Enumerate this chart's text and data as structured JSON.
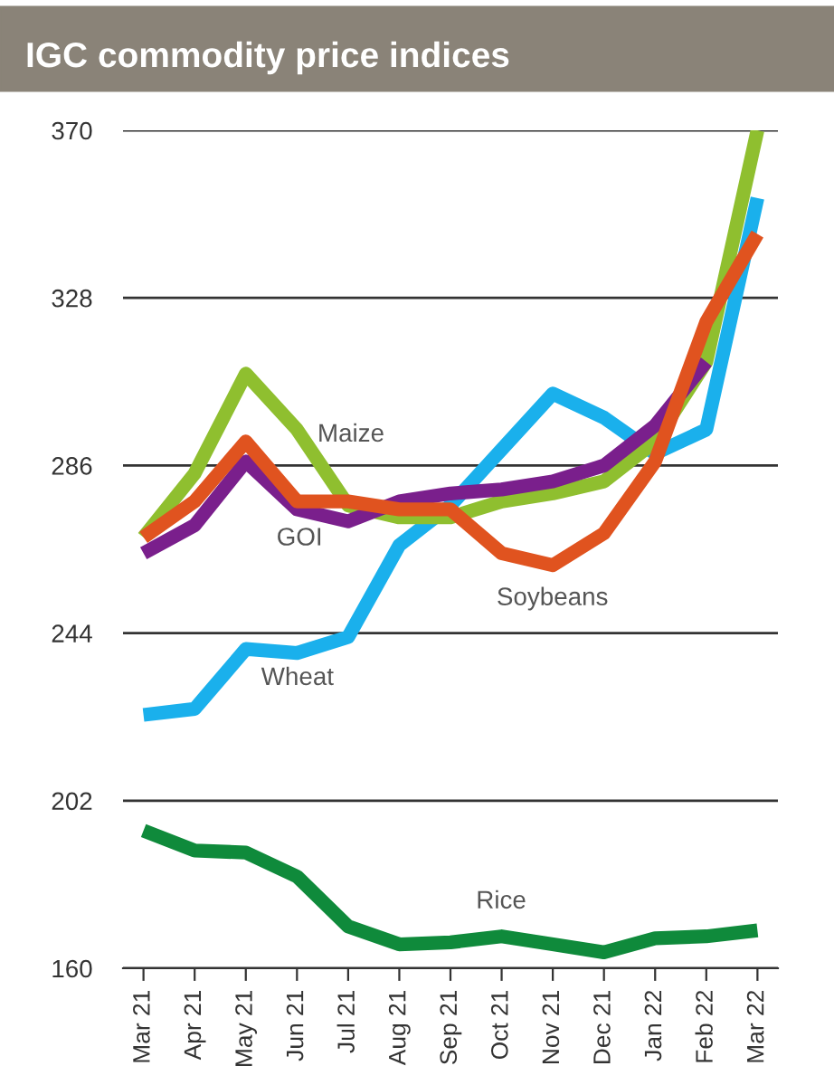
{
  "chart_data": {
    "type": "line",
    "title": "IGC commodity price indices",
    "categories": [
      "Mar 21",
      "Apr 21",
      "May 21",
      "Jun 21",
      "Jul 21",
      "Aug 21",
      "Sep 21",
      "Oct 21",
      "Nov 21",
      "Dec 21",
      "Jan 22",
      "Feb 22",
      "Mar 22"
    ],
    "series": [
      {
        "name": "Wheat",
        "color": "#1ab0ec",
        "values": [
          223.5,
          225,
          240,
          239,
          243,
          266,
          276,
          290,
          304,
          298,
          289,
          295,
          353
        ]
      },
      {
        "name": "Maize",
        "color": "#8fbf2f",
        "values": [
          268,
          284,
          309,
          295,
          276,
          273,
          273,
          277,
          279,
          282,
          292,
          312,
          370
        ]
      },
      {
        "name": "GOI",
        "color": "#7a1f8c",
        "values": [
          264,
          271,
          287,
          275,
          272,
          277,
          279,
          280,
          282,
          286,
          296,
          312,
          null
        ]
      },
      {
        "name": "Soybeans",
        "color": "#e0531f",
        "values": [
          268,
          277,
          292,
          277,
          277,
          275,
          275,
          264,
          261,
          269,
          287,
          322,
          344
        ]
      },
      {
        "name": "Rice",
        "color": "#0f8a3b",
        "values": [
          194.5,
          189.5,
          189,
          183,
          170.5,
          166,
          166.5,
          168,
          166,
          164,
          167.5,
          168,
          169.5
        ]
      }
    ],
    "ylim": [
      160,
      370
    ],
    "yticks": [
      160,
      202,
      244,
      286,
      328,
      370
    ],
    "grid": "y",
    "line_style": "solid",
    "marker": "none",
    "legend": false
  }
}
